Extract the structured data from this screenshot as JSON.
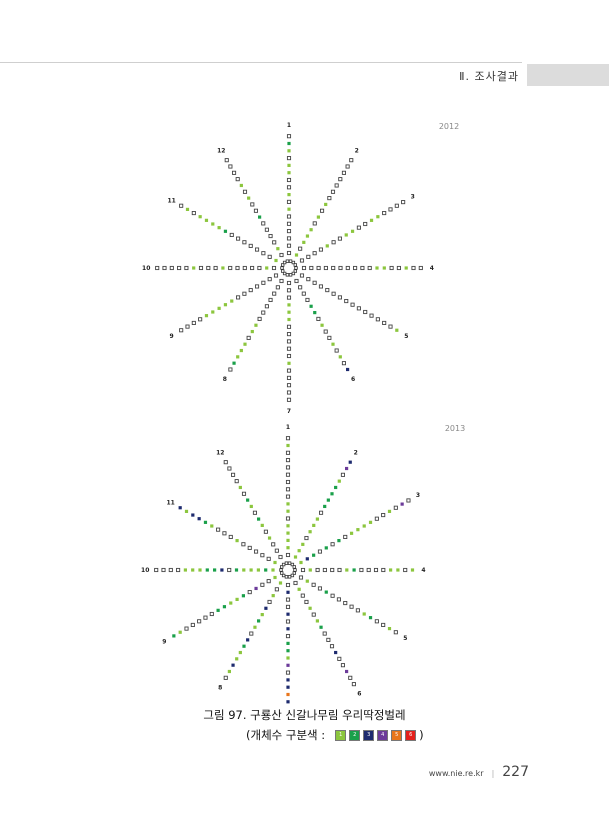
{
  "header": {
    "section": "Ⅱ. 조사결과"
  },
  "colors": {
    "0": "#ffffff",
    "1": "#8cc63e",
    "2": "#1aa04a",
    "3": "#1d2a6e",
    "4": "#6c3b9a",
    "5": "#e8761c",
    "6": "#e3201b"
  },
  "diagrams": [
    {
      "year": "2012",
      "spoke_labels": [
        "1",
        "2",
        "3",
        "4",
        "5",
        "6",
        "7",
        "8",
        "9",
        "10",
        "11",
        "12"
      ],
      "spokes": [
        "00000010100110120",
        "1011101010000000",
        "00001001100110000",
        "00000000001100100",
        "0000000000000001",
        "000022010010103",
        "00011100000100000",
        "000000011011120",
        "0000000111110000",
        "01000001000100000",
        "1000000021111010",
        "0100002001010000"
      ]
    },
    {
      "year": "2013",
      "spoke_labels": [
        "1",
        "2",
        "3",
        "4",
        "5",
        "6",
        "7",
        "8",
        "9",
        "10",
        "11",
        "12"
      ],
      "spokes": [
        "01111011000000010",
        "1110111022221043",
        "132020201111001040",
        "0100001200001101",
        "0100200000120010",
        "01001012000300400",
        "03003030221403353",
        "1010312103211310",
        "10040211220000012",
        "12111203221110000",
        "1000001000123313",
        "0001012012010000"
      ]
    }
  ],
  "caption": {
    "title": "그림 97. 구룡산 신갈나무림 우리딱정벌레",
    "legend_prefix": "(개체수 구분색 :",
    "legend_suffix": ")",
    "legend_items": [
      {
        "label": "1",
        "color": "#8cc63e"
      },
      {
        "label": "2",
        "color": "#1aa04a"
      },
      {
        "label": "3",
        "color": "#1d2a6e"
      },
      {
        "label": "4",
        "color": "#6c3b9a"
      },
      {
        "label": "5",
        "color": "#e8761c"
      },
      {
        "label": "6",
        "color": "#e3201b"
      }
    ]
  },
  "footer": {
    "url": "www.nie.re.kr",
    "page": "227"
  }
}
